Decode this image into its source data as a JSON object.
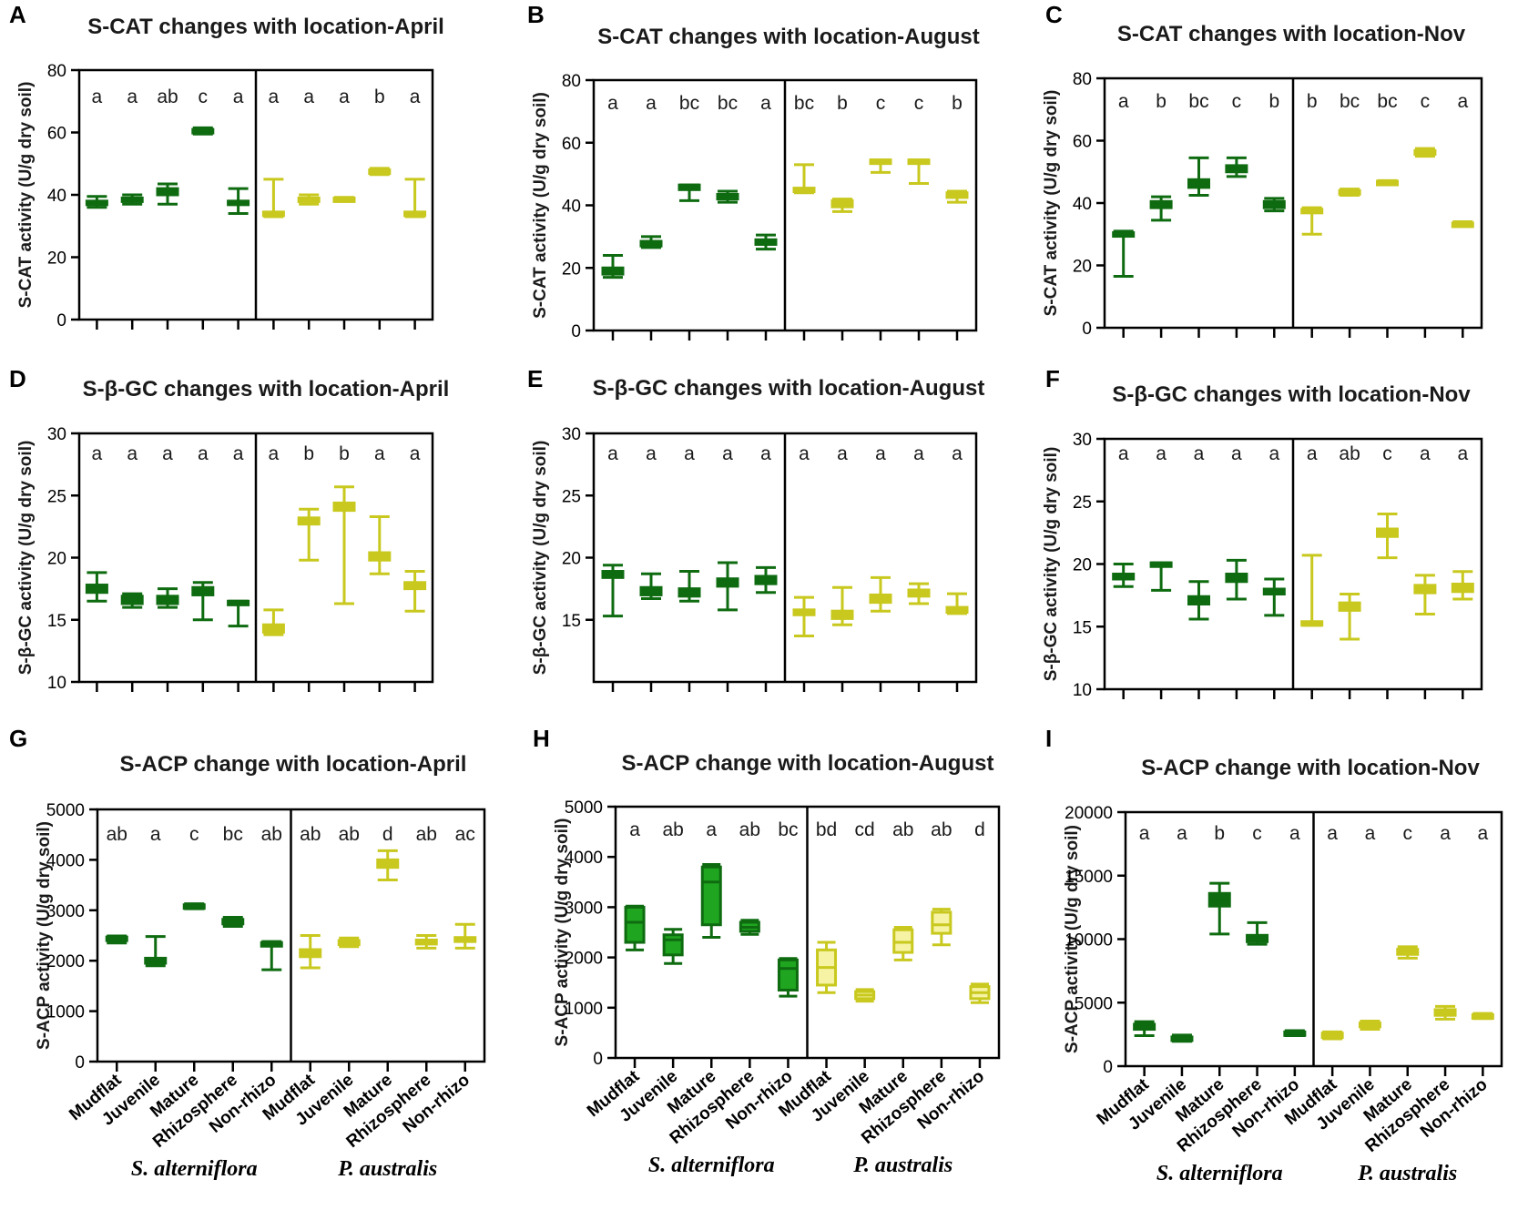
{
  "figure": {
    "x_categories": [
      "Mudflat",
      "Juvenile",
      "Mature",
      "Rhizosphere",
      "Non-rhizo"
    ],
    "species": [
      "S. alterniflora",
      "P. australis"
    ],
    "colors": {
      "S. alterniflora": "#0e6b10",
      "P. australis": "#c8c81e",
      "S. alterniflora fill (H)": "#1fa51f",
      "P. australis fill (H)": "#f6f3a4",
      "axis": "#000000"
    }
  },
  "chart_data": [
    {
      "panel": "A",
      "type": "box",
      "title": "S-CAT changes with location-April",
      "ylabel": "S-CAT activity (U/g dry soil)",
      "ylim": [
        0,
        80
      ],
      "yticks": [
        "0",
        "20",
        "40",
        "60",
        "80"
      ],
      "show_xticklabels": false,
      "series": [
        {
          "name": "S. alterniflora",
          "letters": [
            "a",
            "a",
            "ab",
            "c",
            "a"
          ],
          "boxes": [
            [
              36,
              37,
              37.5,
              38,
              39.5
            ],
            [
              37,
              38,
              38.5,
              39,
              40
            ],
            [
              37,
              40,
              41,
              42,
              43.5
            ],
            [
              59.5,
              60.3,
              60.7,
              61,
              61.5
            ],
            [
              34,
              37,
              37.5,
              38,
              42
            ]
          ]
        },
        {
          "name": "P. australis",
          "letters": [
            "a",
            "a",
            "a",
            "b",
            "a"
          ],
          "boxes": [
            [
              33,
              33.5,
              34,
              34.5,
              45
            ],
            [
              37,
              38,
              38.5,
              39,
              40
            ],
            [
              38,
              38.5,
              38.8,
              39,
              39.2
            ],
            [
              46.5,
              47.2,
              47.7,
              48,
              48.5
            ],
            [
              33,
              33.5,
              34,
              34.5,
              45
            ]
          ]
        }
      ]
    },
    {
      "panel": "B",
      "type": "box",
      "title": "S-CAT changes with location-August",
      "ylabel": "S-CAT activity (U/g dry soil)",
      "ylim": [
        0,
        80
      ],
      "yticks": [
        "0",
        "20",
        "40",
        "60",
        "80"
      ],
      "show_xticklabels": false,
      "series": [
        {
          "name": "S. alterniflora",
          "letters": [
            "a",
            "a",
            "bc",
            "bc",
            "a"
          ],
          "boxes": [
            [
              17,
              18,
              18.5,
              20,
              24
            ],
            [
              26.5,
              27,
              27.5,
              28.5,
              30
            ],
            [
              41.5,
              45,
              45.5,
              46.5,
              46.5
            ],
            [
              41,
              42,
              42.7,
              43.5,
              44.5
            ],
            [
              26,
              27.5,
              28,
              29,
              30.5
            ]
          ]
        },
        {
          "name": "P. australis",
          "letters": [
            "bc",
            "b",
            "c",
            "c",
            "b"
          ],
          "boxes": [
            [
              44,
              44.5,
              45,
              45.5,
              53
            ],
            [
              38,
              39.5,
              40.5,
              41.5,
              42
            ],
            [
              50.5,
              53.5,
              54,
              54.5,
              54.5
            ],
            [
              47,
              53.5,
              54,
              54.5,
              54.5
            ],
            [
              41,
              42.5,
              43.5,
              44,
              44.5
            ]
          ]
        }
      ]
    },
    {
      "panel": "C",
      "type": "box",
      "title": "S-CAT changes with location-Nov",
      "ylabel": "S-CAT activity (U/g dry soil)",
      "ylim": [
        0,
        80
      ],
      "yticks": [
        "0",
        "20",
        "40",
        "60",
        "80"
      ],
      "show_xticklabels": false,
      "series": [
        {
          "name": "S. alterniflora",
          "letters": [
            "a",
            "b",
            "bc",
            "c",
            "b"
          ],
          "boxes": [
            [
              16.5,
              29.5,
              30,
              30.5,
              31
            ],
            [
              34.5,
              38.5,
              39.5,
              40.5,
              42
            ],
            [
              42.5,
              45,
              46,
              47.5,
              54.5
            ],
            [
              48.5,
              50,
              51,
              52,
              54.5
            ],
            [
              37.5,
              38.5,
              39.5,
              40.5,
              41.5
            ]
          ]
        },
        {
          "name": "P. australis",
          "letters": [
            "b",
            "bc",
            "bc",
            "c",
            "a"
          ],
          "boxes": [
            [
              30,
              37,
              37.5,
              38,
              38.5
            ],
            [
              42.5,
              43.2,
              43.7,
              44,
              44.5
            ],
            [
              46.2,
              46.5,
              46.8,
              47,
              47.2
            ],
            [
              55,
              55.8,
              56.3,
              56.8,
              57.5
            ],
            [
              32.5,
              33,
              33.3,
              33.6,
              34
            ]
          ]
        }
      ]
    },
    {
      "panel": "D",
      "type": "box",
      "title": "S-β-GC changes with location-April",
      "ylabel": "S-β-GC activity (U/g dry soil)",
      "ylim": [
        10,
        30
      ],
      "yticks": [
        "10",
        "15",
        "20",
        "25",
        "30"
      ],
      "show_xticklabels": false,
      "series": [
        {
          "name": "S. alterniflora",
          "letters": [
            "a",
            "a",
            "a",
            "a",
            "a"
          ],
          "boxes": [
            [
              16.5,
              17.2,
              17.5,
              17.8,
              18.8
            ],
            [
              16,
              16.3,
              16.6,
              16.9,
              17.1
            ],
            [
              16,
              16.3,
              16.6,
              16.9,
              17.5
            ],
            [
              15,
              17,
              17.3,
              17.6,
              18
            ],
            [
              14.5,
              16.2,
              16.3,
              16.5,
              16.5
            ]
          ]
        },
        {
          "name": "P. australis",
          "letters": [
            "a",
            "b",
            "b",
            "a",
            "a"
          ],
          "boxes": [
            [
              13.8,
              14,
              14.3,
              14.6,
              15.8
            ],
            [
              19.8,
              22.7,
              23,
              23.2,
              23.9
            ],
            [
              16.3,
              23.8,
              24.1,
              24.4,
              25.7
            ],
            [
              18.7,
              19.8,
              20.1,
              20.4,
              23.3
            ],
            [
              15.7,
              17.5,
              17.8,
              18,
              18.9
            ]
          ]
        }
      ]
    },
    {
      "panel": "E",
      "type": "box",
      "title": "S-β-GC changes with location-August",
      "ylabel": "S-β-GC activity (U/g dry soil)",
      "ylim": [
        10,
        30
      ],
      "yticks": [
        "15",
        "20",
        "25",
        "30"
      ],
      "show_xticklabels": false,
      "series": [
        {
          "name": "S. alterniflora",
          "letters": [
            "a",
            "a",
            "a",
            "a",
            "a"
          ],
          "boxes": [
            [
              15.3,
              18.4,
              18.7,
              18.9,
              19.4
            ],
            [
              16.7,
              17,
              17.3,
              17.6,
              18.7
            ],
            [
              16.5,
              16.9,
              17.2,
              17.5,
              18.9
            ],
            [
              15.8,
              17.7,
              18,
              18.3,
              19.6
            ],
            [
              17.2,
              17.9,
              18.2,
              18.5,
              19.2
            ]
          ]
        },
        {
          "name": "P. australis",
          "letters": [
            "a",
            "a",
            "a",
            "a",
            "a"
          ],
          "boxes": [
            [
              13.7,
              15.4,
              15.6,
              15.8,
              16.8
            ],
            [
              14.6,
              15.1,
              15.4,
              15.7,
              17.6
            ],
            [
              15.7,
              16.4,
              16.7,
              17,
              18.4
            ],
            [
              16.3,
              16.9,
              17.2,
              17.4,
              17.9
            ],
            [
              15.5,
              15.6,
              15.8,
              16,
              17.1
            ]
          ]
        }
      ]
    },
    {
      "panel": "F",
      "type": "box",
      "title": "S-β-GC changes with location-Nov",
      "ylabel": "S-β-GC activity (U/g dry soil)",
      "ylim": [
        10,
        30
      ],
      "yticks": [
        "10",
        "15",
        "20",
        "25",
        "30"
      ],
      "show_xticklabels": false,
      "series": [
        {
          "name": "S. alterniflora",
          "letters": [
            "a",
            "a",
            "a",
            "a",
            "a"
          ],
          "boxes": [
            [
              18.2,
              18.8,
              19,
              19.2,
              20
            ],
            [
              17.9,
              19.8,
              20,
              20.1,
              20.1
            ],
            [
              15.6,
              16.8,
              17.1,
              17.4,
              18.6
            ],
            [
              17.2,
              18.6,
              18.9,
              19.2,
              20.3
            ],
            [
              15.9,
              17.6,
              17.8,
              18,
              18.8
            ]
          ]
        },
        {
          "name": "P. australis",
          "letters": [
            "a",
            "ab",
            "c",
            "a",
            "a"
          ],
          "boxes": [
            [
              15.1,
              15.2,
              15.3,
              15.4,
              20.7
            ],
            [
              14,
              16.3,
              16.6,
              16.9,
              17.6
            ],
            [
              20.5,
              22.2,
              22.5,
              22.8,
              24
            ],
            [
              16,
              17.7,
              18,
              18.3,
              19.1
            ],
            [
              17.2,
              17.8,
              18.1,
              18.4,
              19.4
            ]
          ]
        }
      ]
    },
    {
      "panel": "G",
      "type": "box",
      "title": "S-ACP change with location-April",
      "ylabel": "S-ACP activity (U/g dry soil)",
      "ylim": [
        0,
        5000
      ],
      "yticks": [
        "0",
        "1000",
        "2000",
        "3000",
        "4000",
        "5000"
      ],
      "show_xticklabels": true,
      "series": [
        {
          "name": "S. alterniflora",
          "letters": [
            "ab",
            "a",
            "c",
            "bc",
            "ab"
          ],
          "boxes": [
            [
              2350,
              2400,
              2430,
              2470,
              2490
            ],
            [
              1900,
              1950,
              2000,
              2050,
              2480
            ],
            [
              3030,
              3060,
              3080,
              3110,
              3130
            ],
            [
              2680,
              2730,
              2780,
              2820,
              2860
            ],
            [
              1820,
              2320,
              2350,
              2360,
              2380
            ]
          ]
        },
        {
          "name": "P. australis",
          "letters": [
            "ab",
            "ab",
            "d",
            "ab",
            "ac"
          ],
          "boxes": [
            [
              1860,
              2080,
              2150,
              2220,
              2500
            ],
            [
              2280,
              2320,
              2360,
              2400,
              2450
            ],
            [
              3600,
              3850,
              3930,
              4000,
              4180
            ],
            [
              2250,
              2330,
              2370,
              2410,
              2500
            ],
            [
              2250,
              2380,
              2420,
              2460,
              2720
            ]
          ]
        }
      ]
    },
    {
      "panel": "H",
      "type": "box",
      "title": "S-ACP change with location-August",
      "ylabel": "S-ACP activity (U/g dry soil)",
      "ylim": [
        0,
        5000
      ],
      "yticks": [
        "0",
        "1000",
        "2000",
        "3000",
        "4000",
        "5000"
      ],
      "show_xticklabels": true,
      "filled": true,
      "series": [
        {
          "name": "S. alterniflora",
          "letters": [
            "a",
            "ab",
            "a",
            "ab",
            "bc"
          ],
          "boxes": [
            [
              2150,
              2300,
              2700,
              3000,
              3020
            ],
            [
              1880,
              2050,
              2350,
              2450,
              2560
            ],
            [
              2400,
              2650,
              3500,
              3800,
              3850
            ],
            [
              2460,
              2520,
              2600,
              2700,
              2740
            ],
            [
              1230,
              1350,
              1780,
              1950,
              1980
            ]
          ]
        },
        {
          "name": "P. australis",
          "letters": [
            "bd",
            "cd",
            "ab",
            "ab",
            "d"
          ],
          "boxes": [
            [
              1300,
              1450,
              1800,
              2150,
              2300
            ],
            [
              1130,
              1180,
              1250,
              1320,
              1360
            ],
            [
              1950,
              2100,
              2300,
              2550,
              2600
            ],
            [
              2250,
              2480,
              2650,
              2900,
              2960
            ],
            [
              1100,
              1180,
              1300,
              1420,
              1470
            ]
          ]
        }
      ]
    },
    {
      "panel": "I",
      "type": "box",
      "title": "S-ACP change with location-Nov",
      "ylabel": "S-ACP activity (U/g dry soil)",
      "ylim": [
        0,
        20000
      ],
      "yticks": [
        "0",
        "5000",
        "10000",
        "15000",
        "20000"
      ],
      "show_xticklabels": true,
      "series": [
        {
          "name": "S. alterniflora",
          "letters": [
            "a",
            "a",
            "b",
            "c",
            "a"
          ],
          "boxes": [
            [
              2400,
              2900,
              3100,
              3300,
              3500
            ],
            [
              1950,
              2050,
              2200,
              2300,
              2450
            ],
            [
              10400,
              12600,
              13100,
              13600,
              14400
            ],
            [
              9600,
              9800,
              10000,
              10300,
              11300
            ],
            [
              2400,
              2500,
              2600,
              2700,
              2800
            ]
          ]
        },
        {
          "name": "P. australis",
          "letters": [
            "a",
            "a",
            "c",
            "a",
            "a"
          ],
          "boxes": [
            [
              2150,
              2250,
              2400,
              2600,
              2700
            ],
            [
              2900,
              3100,
              3200,
              3400,
              3550
            ],
            [
              8500,
              8800,
              9000,
              9200,
              9400
            ],
            [
              3700,
              4000,
              4200,
              4450,
              4700
            ],
            [
              3750,
              3850,
              3950,
              4050,
              4150
            ]
          ]
        }
      ]
    }
  ]
}
